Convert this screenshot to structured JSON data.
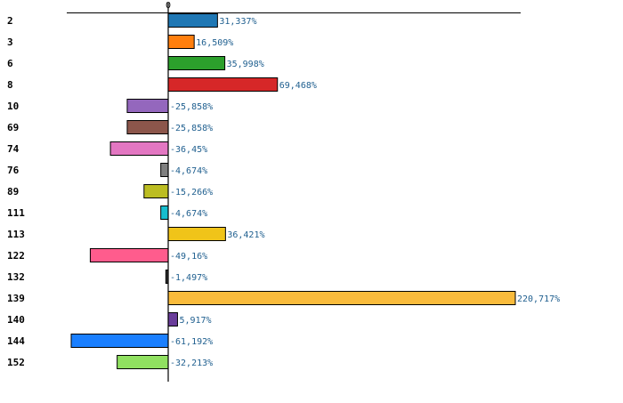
{
  "chart_data": {
    "type": "bar",
    "orientation": "horizontal",
    "title": "",
    "xlabel": "",
    "ylabel": "",
    "x_tick_labels": [
      "0"
    ],
    "categories": [
      "2",
      "3",
      "6",
      "8",
      "10",
      "69",
      "74",
      "76",
      "89",
      "111",
      "113",
      "122",
      "132",
      "139",
      "140",
      "144",
      "152"
    ],
    "values": [
      31.337,
      16.509,
      35.998,
      69.468,
      -25.858,
      -25.858,
      -36.45,
      -4.674,
      -15.266,
      -4.674,
      36.421,
      -49.16,
      -1.497,
      220.717,
      5.917,
      -61.192,
      -32.213
    ],
    "value_labels": [
      "31,337%",
      "16,509%",
      "35,998%",
      "69,468%",
      "-25,858%",
      "-25,858%",
      "-36,45%",
      "-4,674%",
      "-15,266%",
      "-4,674%",
      "36,421%",
      "-49,16%",
      "-1,497%",
      "220,717%",
      "5,917%",
      "-61,192%",
      "-32,213%"
    ],
    "colors": [
      "#1f77b4",
      "#ff7f0e",
      "#2ca02c",
      "#d62728",
      "#9467bd",
      "#8c564b",
      "#e377c2",
      "#7f7f7f",
      "#bcbd22",
      "#17becf",
      "#f0c419",
      "#ff5c8d",
      "#333333",
      "#f9bb3c",
      "#6a3d9a",
      "#1a7fff",
      "#90e060"
    ],
    "value_label_color": "#1f5f8f",
    "xlim": [
      -61.192,
      220.717
    ],
    "grid": false,
    "legend": "none"
  }
}
